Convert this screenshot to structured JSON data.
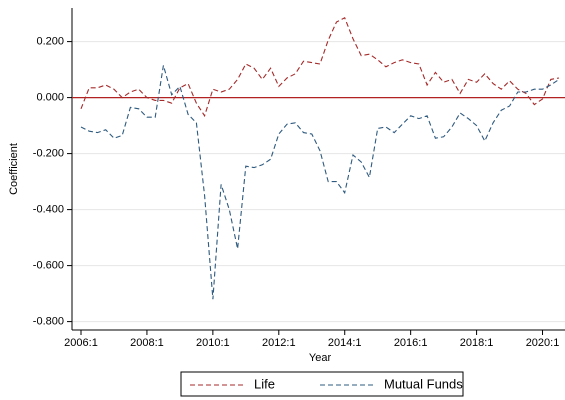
{
  "chart_data": {
    "type": "line",
    "x_label": "Year",
    "y_label": "Coefficient",
    "categories": [
      "2006:1",
      null,
      null,
      null,
      null,
      null,
      null,
      null,
      "2008:1",
      null,
      null,
      null,
      null,
      null,
      null,
      null,
      "2010:1",
      null,
      null,
      null,
      null,
      null,
      null,
      null,
      "2012:1",
      null,
      null,
      null,
      null,
      null,
      null,
      null,
      "2014:1",
      null,
      null,
      null,
      null,
      null,
      null,
      null,
      "2016:1",
      null,
      null,
      null,
      null,
      null,
      null,
      null,
      "2018:1",
      null,
      null,
      null,
      null,
      null,
      null,
      null,
      "2020:1",
      null,
      null
    ],
    "series": [
      {
        "name": "Life",
        "color": "#a52a2a",
        "values": [
          -0.04,
          0.035,
          0.035,
          0.045,
          0.03,
          0.0,
          0.02,
          0.03,
          0.0,
          -0.01,
          -0.01,
          -0.02,
          0.035,
          0.05,
          -0.02,
          -0.065,
          0.03,
          0.02,
          0.03,
          0.065,
          0.12,
          0.105,
          0.065,
          0.105,
          0.04,
          0.07,
          0.085,
          0.13,
          0.125,
          0.12,
          0.205,
          0.27,
          0.285,
          0.21,
          0.15,
          0.155,
          0.135,
          0.11,
          0.125,
          0.135,
          0.125,
          0.12,
          0.045,
          0.09,
          0.055,
          0.065,
          0.015,
          0.065,
          0.055,
          0.085,
          0.05,
          0.03,
          0.06,
          0.03,
          0.015,
          -0.025,
          -0.005,
          0.065,
          0.07
        ]
      },
      {
        "name": "Mutual Funds",
        "color": "#2e5a7f",
        "values": [
          -0.105,
          -0.12,
          -0.125,
          -0.115,
          -0.145,
          -0.135,
          -0.035,
          -0.04,
          -0.07,
          -0.07,
          0.115,
          0.01,
          0.04,
          -0.06,
          -0.09,
          -0.35,
          -0.72,
          -0.31,
          -0.4,
          -0.54,
          -0.245,
          -0.25,
          -0.24,
          -0.22,
          -0.13,
          -0.095,
          -0.09,
          -0.125,
          -0.13,
          -0.19,
          -0.3,
          -0.3,
          -0.34,
          -0.205,
          -0.23,
          -0.285,
          -0.11,
          -0.105,
          -0.125,
          -0.095,
          -0.065,
          -0.075,
          -0.065,
          -0.145,
          -0.14,
          -0.105,
          -0.055,
          -0.075,
          -0.1,
          -0.155,
          -0.09,
          -0.045,
          -0.03,
          0.02,
          0.02,
          0.03,
          0.03,
          0.045,
          0.065
        ]
      }
    ],
    "ylim": [
      -0.83,
      0.32
    ],
    "yticks": [
      {
        "value": -0.8,
        "label": "-0.800"
      },
      {
        "value": -0.6,
        "label": "-0.600"
      },
      {
        "value": -0.4,
        "label": "-0.400"
      },
      {
        "value": -0.2,
        "label": "-0.200"
      },
      {
        "value": 0,
        "label": "0.000"
      },
      {
        "value": 0.2,
        "label": "0.200"
      }
    ],
    "hline": 0,
    "hline_color": "#b22222",
    "grid": true,
    "legend": "bottom"
  }
}
